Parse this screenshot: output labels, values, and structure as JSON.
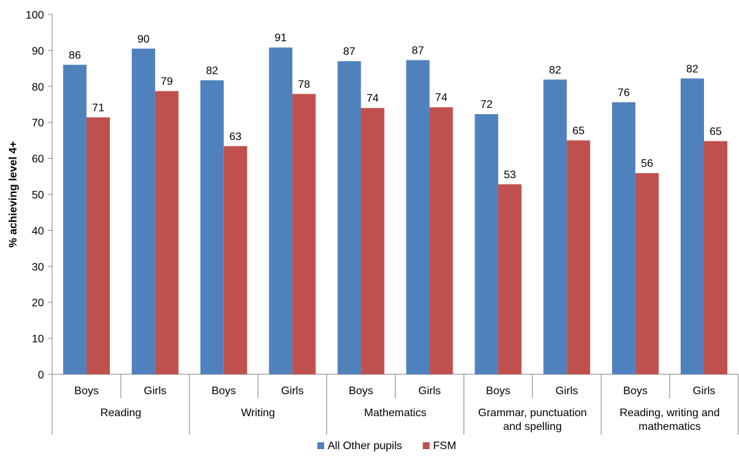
{
  "chart_data": {
    "type": "bar",
    "ylabel": "% achieving level 4+",
    "xlabel": "",
    "ylim": [
      0,
      100
    ],
    "yticks": [
      0,
      10,
      20,
      30,
      40,
      50,
      60,
      70,
      80,
      90,
      100
    ],
    "grid": false,
    "legend_position": "bottom",
    "groups": [
      "Reading",
      "Writing",
      "Mathematics",
      "Grammar, punctuation and spelling",
      "Reading, writing and mathematics"
    ],
    "group_label_lines": [
      [
        "Reading"
      ],
      [
        "Writing"
      ],
      [
        "Mathematics"
      ],
      [
        "Grammar, punctuation",
        "and spelling"
      ],
      [
        "Reading, writing and",
        "mathematics"
      ]
    ],
    "categories": [
      "Boys",
      "Girls",
      "Boys",
      "Girls",
      "Boys",
      "Girls",
      "Boys",
      "Girls",
      "Boys",
      "Girls"
    ],
    "series": [
      {
        "name": "All Other pupils",
        "color": "#4f81bd",
        "values": [
          86,
          90.5,
          81.7,
          90.8,
          87,
          87.3,
          72.3,
          81.9,
          75.6,
          82.2
        ],
        "labels": [
          "86",
          "90",
          "82",
          "91",
          "87",
          "87",
          "72",
          "82",
          "76",
          "82"
        ]
      },
      {
        "name": "FSM",
        "color": "#c0504d",
        "values": [
          71.4,
          78.7,
          63.4,
          77.9,
          74,
          74.2,
          52.8,
          65,
          55.9,
          64.8
        ],
        "labels": [
          "71",
          "79",
          "63",
          "78",
          "74",
          "74",
          "53",
          "65",
          "56",
          "65"
        ]
      }
    ]
  }
}
